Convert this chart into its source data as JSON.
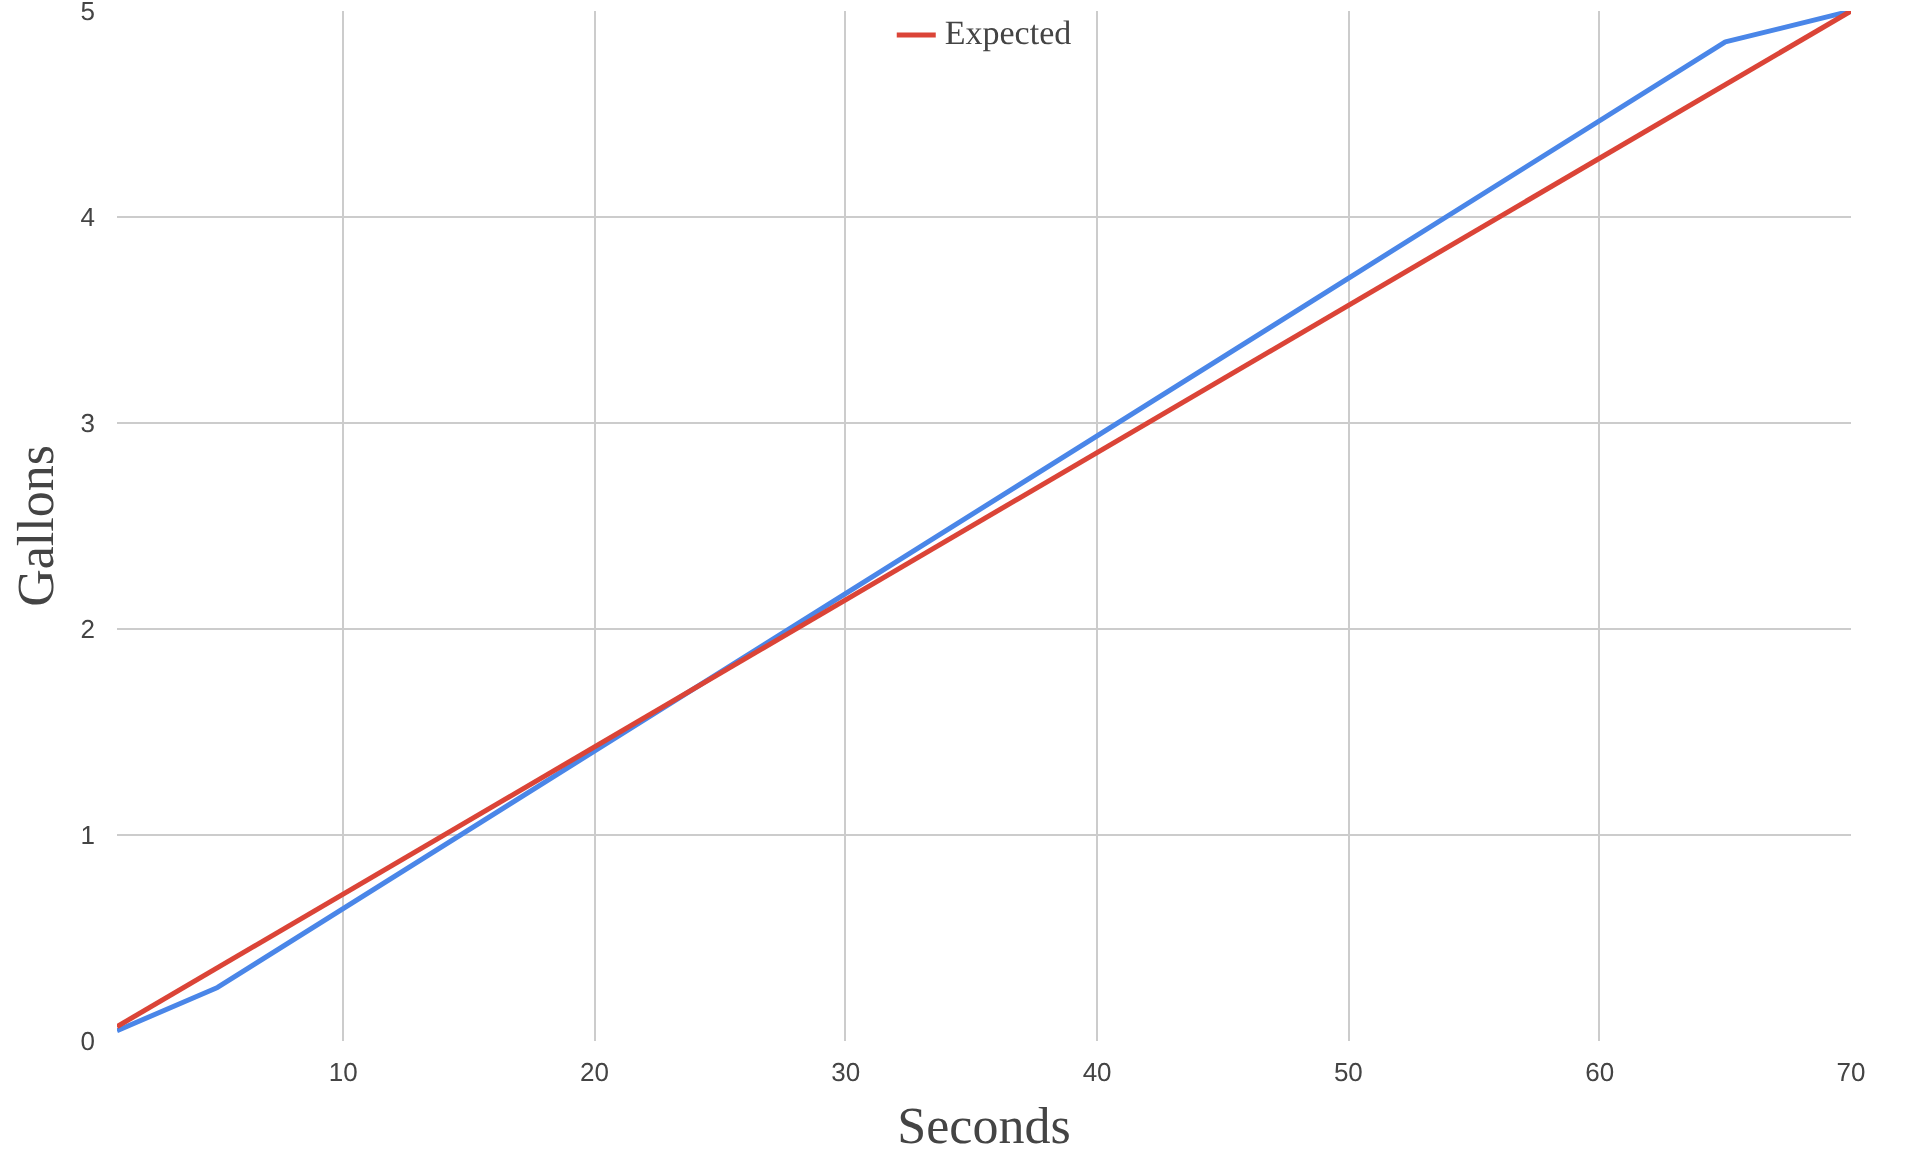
{
  "chart_data": {
    "type": "line",
    "xlabel": "Seconds",
    "ylabel": "Gallons",
    "xlim": [
      1,
      70
    ],
    "ylim": [
      0,
      5
    ],
    "xticks": [
      10,
      20,
      30,
      40,
      50,
      60,
      70
    ],
    "yticks": [
      0,
      1,
      2,
      3,
      4,
      5
    ],
    "grid": true,
    "legend": "top",
    "series": [
      {
        "color": "#4a86e8",
        "x": [
          1,
          5,
          65,
          70
        ],
        "values": [
          0.05,
          0.26,
          4.85,
          5
        ]
      },
      {
        "name": "Expected",
        "color": "#db4437",
        "x": [
          1,
          70
        ],
        "values": [
          0.07,
          5
        ]
      }
    ]
  }
}
